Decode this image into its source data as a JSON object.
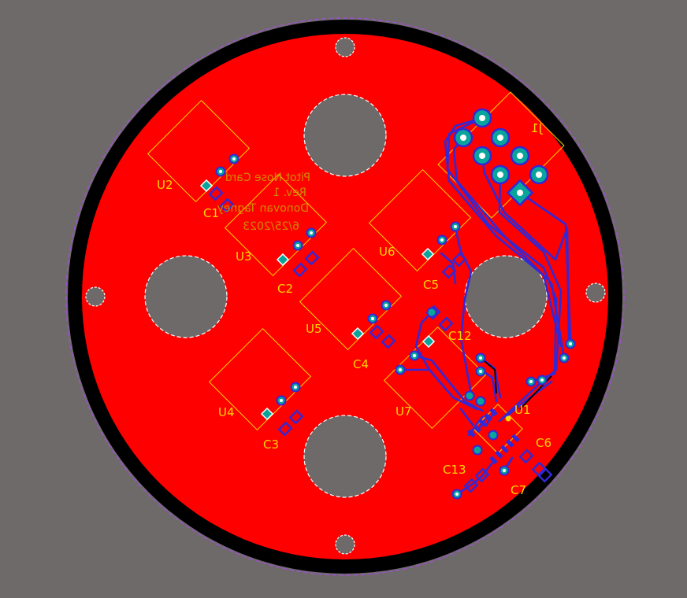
{
  "colors": {
    "background": "#6e6a6a",
    "copper": "#ff0000",
    "ring": "#000000",
    "outline": "#9a52c8",
    "silkscreen": "#ffd400",
    "trace": "#3328d6",
    "pad": "#0aa59a"
  },
  "labels": {
    "j1": "J1",
    "u1": "U1",
    "u2": "U2",
    "u3": "U3",
    "u4": "U4",
    "u5": "U5",
    "u6": "U6",
    "u7": "U7",
    "c1": "C1",
    "c2": "C2",
    "c3": "C3",
    "c4": "C4",
    "c5": "C5",
    "c6": "C6",
    "c7": "C7",
    "c12": "C12",
    "c13": "C13"
  },
  "silkscreen_text": {
    "line1": "Pitot Nose Card",
    "line2": "Rev. 1",
    "line3": "Donovan Tagney",
    "line4": "6/25/2023"
  }
}
